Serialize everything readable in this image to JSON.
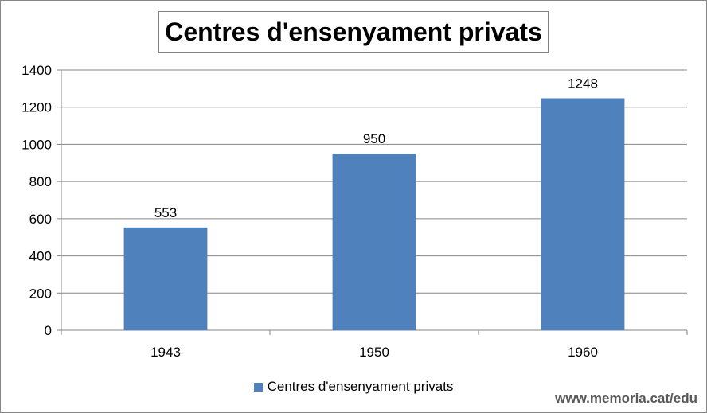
{
  "chart_data": {
    "type": "bar",
    "title": "Centres d'ensenyament privats",
    "categories": [
      "1943",
      "1950",
      "1960"
    ],
    "series": [
      {
        "name": "Centres d'ensenyament privats",
        "values": [
          553,
          950,
          1248
        ],
        "color": "#4f81bd"
      }
    ],
    "data_labels": [
      "553",
      "950",
      "1248"
    ],
    "ylim": [
      0,
      1400
    ],
    "yticks": [
      "0",
      "200",
      "400",
      "600",
      "800",
      "1000",
      "1200",
      "1400"
    ],
    "ytick_values": [
      0,
      200,
      400,
      600,
      800,
      1000,
      1200,
      1400
    ],
    "grid": true,
    "legend_position": "bottom"
  },
  "watermark": "www.memoria.cat/edu"
}
